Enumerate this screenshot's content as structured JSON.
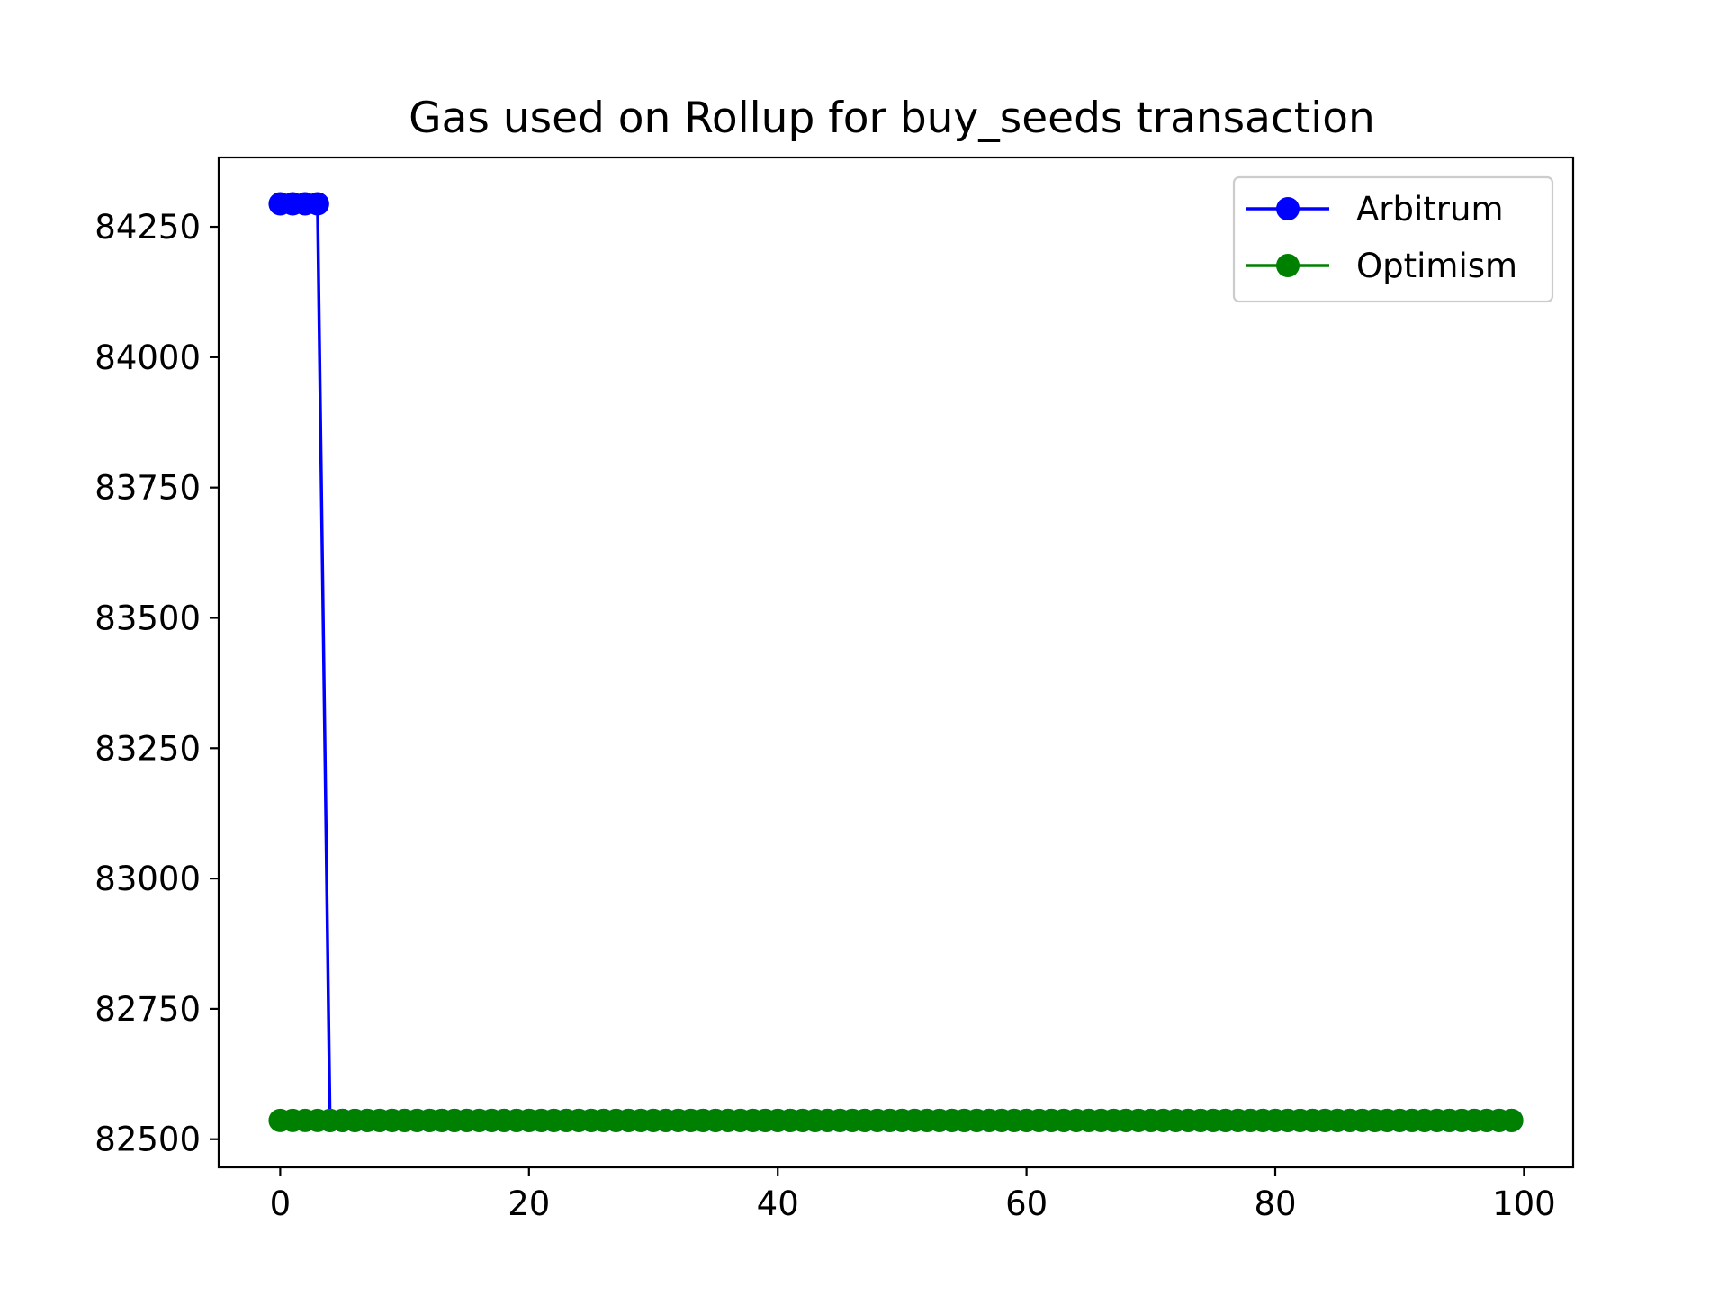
{
  "chart_data": {
    "type": "line",
    "title": "Gas used on Rollup for buy_seeds transaction",
    "xlabel": "",
    "ylabel": "",
    "xlim": [
      -4.95,
      103.95
    ],
    "ylim": [
      82446,
      84383
    ],
    "x_ticks": [
      0,
      20,
      40,
      60,
      80,
      100
    ],
    "y_ticks": [
      82500,
      82750,
      83000,
      83250,
      83500,
      83750,
      84000,
      84250
    ],
    "legend_placement": "top-right",
    "grid": false,
    "x_range": [
      0,
      99
    ],
    "series": [
      {
        "name": "Arbitrum",
        "color": "#0000ff",
        "marker": "circle",
        "values": [
          84294,
          84294,
          84294,
          84294,
          82536,
          82536,
          82536,
          82536,
          82536,
          82536,
          82536,
          82536,
          82536,
          82536,
          82536,
          82536,
          82536,
          82536,
          82536,
          82536,
          82536,
          82536,
          82536,
          82536,
          82536,
          82536,
          82536,
          82536,
          82536,
          82536,
          82536,
          82536,
          82536,
          82536,
          82536,
          82536,
          82536,
          82536,
          82536,
          82536,
          82536,
          82536,
          82536,
          82536,
          82536,
          82536,
          82536,
          82536,
          82536,
          82536,
          82536,
          82536,
          82536,
          82536,
          82536,
          82536,
          82536,
          82536,
          82536,
          82536,
          82536,
          82536,
          82536,
          82536,
          82536,
          82536,
          82536,
          82536,
          82536,
          82536,
          82536,
          82536,
          82536,
          82536,
          82536,
          82536,
          82536,
          82536,
          82536,
          82536,
          82536,
          82536,
          82536,
          82536,
          82536,
          82536,
          82536,
          82536,
          82536,
          82536,
          82536,
          82536,
          82536,
          82536,
          82536,
          82536,
          82536,
          82536,
          82536,
          82536
        ]
      },
      {
        "name": "Optimism",
        "color": "#008000",
        "marker": "circle",
        "values": [
          82536,
          82536,
          82536,
          82536,
          82536,
          82536,
          82536,
          82536,
          82536,
          82536,
          82536,
          82536,
          82536,
          82536,
          82536,
          82536,
          82536,
          82536,
          82536,
          82536,
          82536,
          82536,
          82536,
          82536,
          82536,
          82536,
          82536,
          82536,
          82536,
          82536,
          82536,
          82536,
          82536,
          82536,
          82536,
          82536,
          82536,
          82536,
          82536,
          82536,
          82536,
          82536,
          82536,
          82536,
          82536,
          82536,
          82536,
          82536,
          82536,
          82536,
          82536,
          82536,
          82536,
          82536,
          82536,
          82536,
          82536,
          82536,
          82536,
          82536,
          82536,
          82536,
          82536,
          82536,
          82536,
          82536,
          82536,
          82536,
          82536,
          82536,
          82536,
          82536,
          82536,
          82536,
          82536,
          82536,
          82536,
          82536,
          82536,
          82536,
          82536,
          82536,
          82536,
          82536,
          82536,
          82536,
          82536,
          82536,
          82536,
          82536,
          82536,
          82536,
          82536,
          82536,
          82536,
          82536,
          82536,
          82536,
          82536,
          82536
        ]
      }
    ]
  }
}
